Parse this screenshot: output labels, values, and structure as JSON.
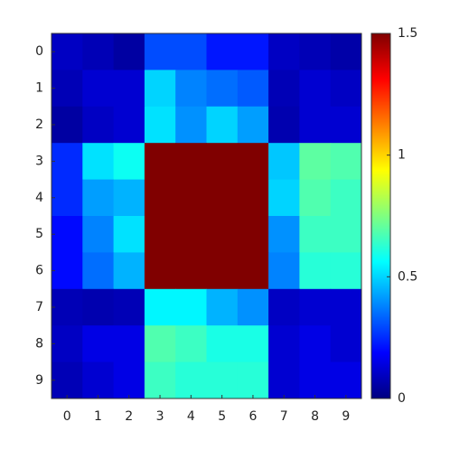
{
  "chart_data": {
    "type": "heatmap",
    "colormap": "jet",
    "x": [
      0,
      1,
      2,
      3,
      4,
      5,
      6,
      7,
      8,
      9
    ],
    "y": [
      0,
      1,
      2,
      3,
      4,
      5,
      6,
      7,
      8,
      9
    ],
    "z": [
      [
        0.1,
        0.08,
        0.05,
        0.3,
        0.3,
        0.22,
        0.22,
        0.1,
        0.08,
        0.06
      ],
      [
        0.08,
        0.12,
        0.12,
        0.5,
        0.38,
        0.35,
        0.32,
        0.08,
        0.12,
        0.1
      ],
      [
        0.05,
        0.1,
        0.12,
        0.52,
        0.4,
        0.5,
        0.42,
        0.07,
        0.12,
        0.12
      ],
      [
        0.25,
        0.52,
        0.58,
        1.5,
        1.5,
        1.5,
        1.5,
        0.48,
        0.7,
        0.68
      ],
      [
        0.25,
        0.42,
        0.45,
        1.5,
        1.5,
        1.5,
        1.5,
        0.5,
        0.68,
        0.65
      ],
      [
        0.2,
        0.38,
        0.52,
        1.5,
        1.5,
        1.5,
        1.5,
        0.4,
        0.65,
        0.65
      ],
      [
        0.2,
        0.35,
        0.45,
        1.5,
        1.5,
        1.5,
        1.5,
        0.38,
        0.62,
        0.62
      ],
      [
        0.08,
        0.07,
        0.08,
        0.55,
        0.55,
        0.45,
        0.4,
        0.1,
        0.12,
        0.12
      ],
      [
        0.1,
        0.15,
        0.15,
        0.68,
        0.65,
        0.6,
        0.6,
        0.12,
        0.15,
        0.12
      ],
      [
        0.08,
        0.12,
        0.15,
        0.65,
        0.62,
        0.62,
        0.62,
        0.12,
        0.15,
        0.15
      ]
    ],
    "clim": [
      0,
      1.5
    ],
    "cticks": [
      0,
      0.5,
      1,
      1.5
    ]
  }
}
